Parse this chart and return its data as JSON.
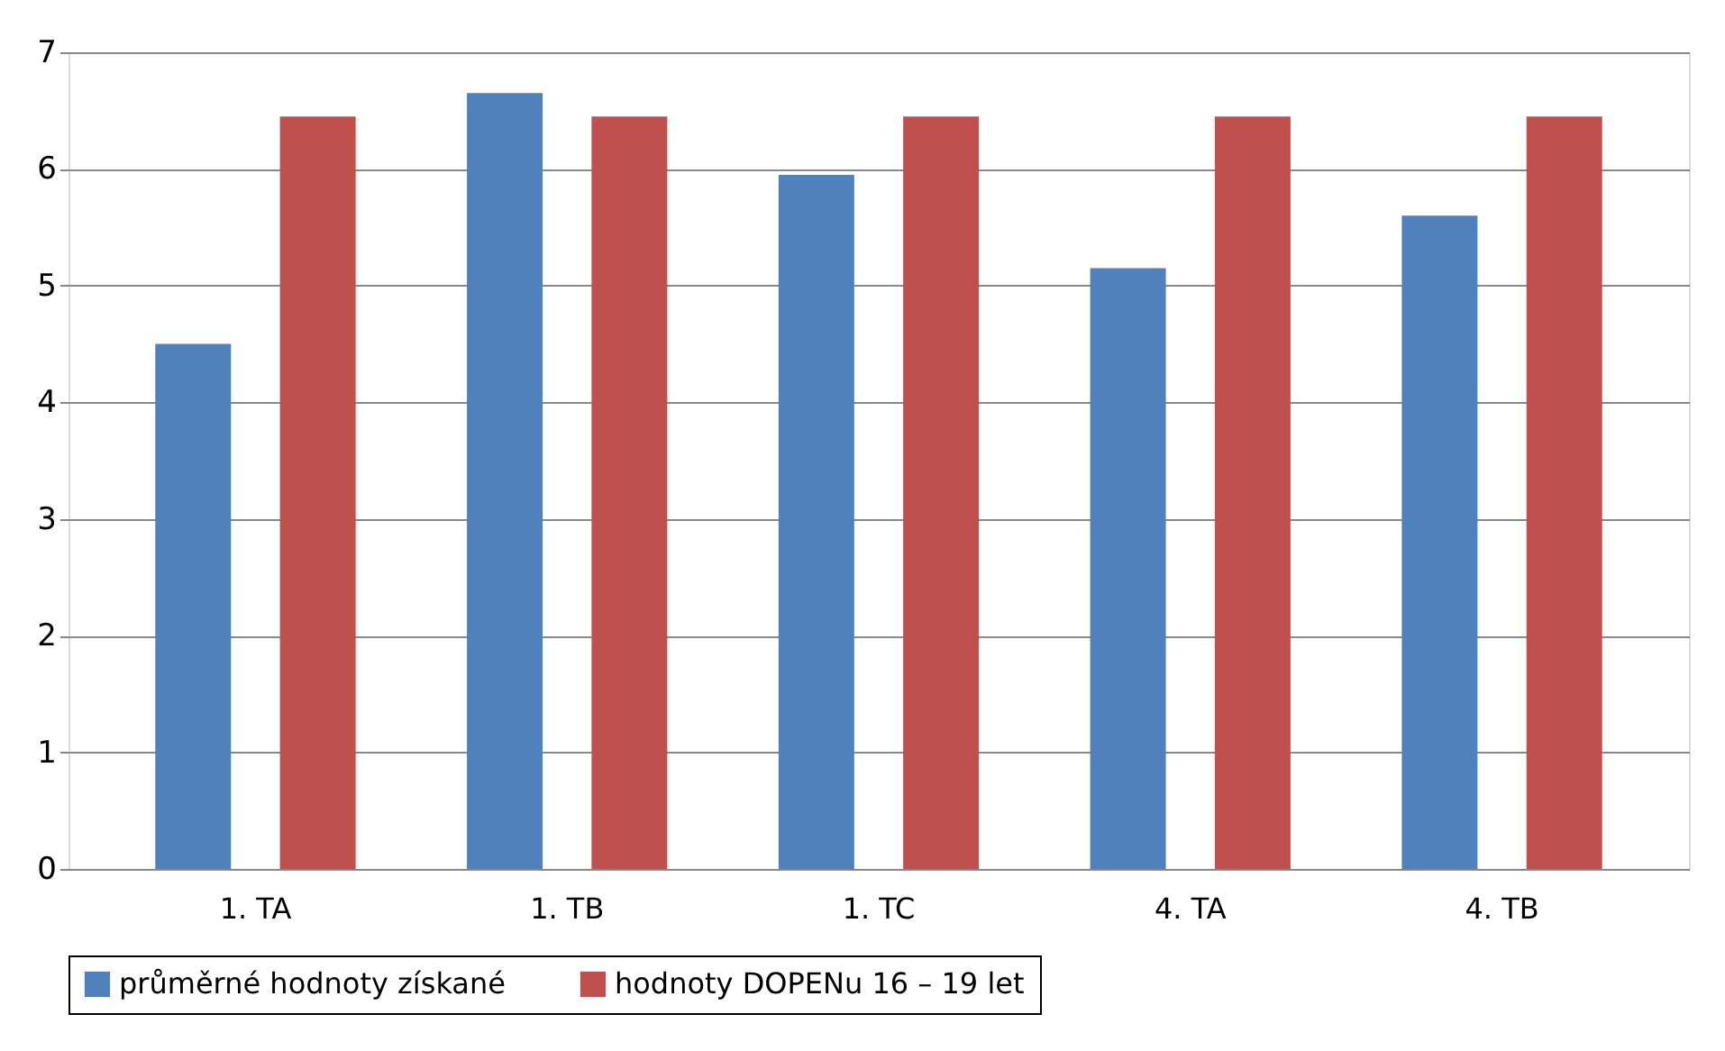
{
  "chart_data": {
    "type": "bar",
    "categories": [
      "1. TA",
      "1. TB",
      "1. TC",
      "4. TA",
      "4. TB"
    ],
    "series": [
      {
        "name": "průměrné hodnoty získané",
        "color": "#4f81bd",
        "values": [
          4.5,
          6.65,
          5.95,
          5.15,
          5.6
        ]
      },
      {
        "name": "hodnoty DOPENu 16 – 19 let",
        "color": "#c0504d",
        "values": [
          6.45,
          6.45,
          6.45,
          6.45,
          6.45
        ]
      }
    ],
    "ylim": [
      0,
      7
    ],
    "yticks": [
      0,
      1,
      2,
      3,
      4,
      5,
      6,
      7
    ],
    "grid": "y",
    "legend": "bottom"
  }
}
